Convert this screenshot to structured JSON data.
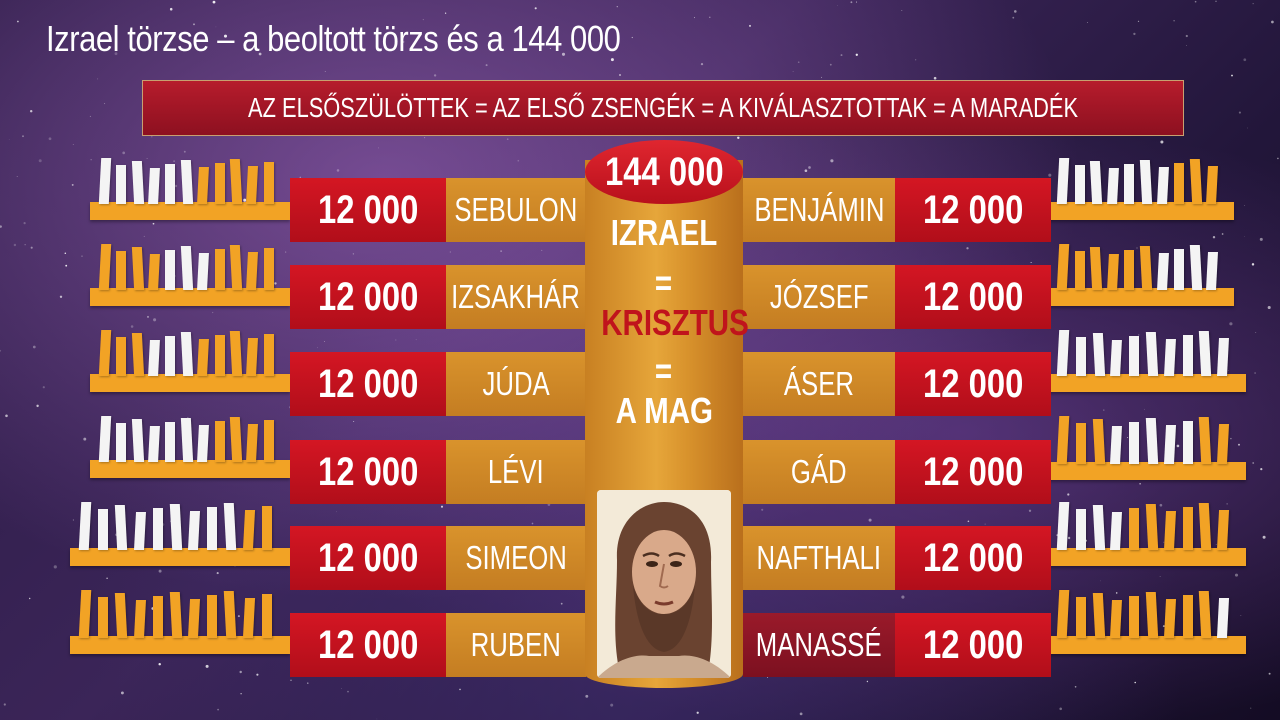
{
  "title": "Izrael törzse – a beoltott törzs és a 144 000",
  "banner": "AZ ELSŐSZÜLÖTTEK = AZ ELSŐ ZSENGÉK = A KIVÁLASZTOTTAK = A MARADÉK",
  "center": {
    "total": "144 000",
    "line1": "IZRAEL",
    "eq1": "=",
    "line2": "KRISZTUS",
    "eq2": "=",
    "line3": "A MAG"
  },
  "left_tribes": [
    {
      "name": "SEBULON",
      "count": "12 000"
    },
    {
      "name": "IZSAKHÁR",
      "count": "12 000"
    },
    {
      "name": "JÚDA",
      "count": "12 000"
    },
    {
      "name": "LÉVI",
      "count": "12 000"
    },
    {
      "name": "SIMEON",
      "count": "12 000"
    },
    {
      "name": "RUBEN",
      "count": "12 000"
    }
  ],
  "right_tribes": [
    {
      "name": "BENJÁMIN",
      "count": "12 000"
    },
    {
      "name": "JÓZSEF",
      "count": "12 000"
    },
    {
      "name": "ÁSER",
      "count": "12 000"
    },
    {
      "name": "GÁD",
      "count": "12 000"
    },
    {
      "name": "NAFTHALI",
      "count": "12 000"
    },
    {
      "name": "MANASSÉ",
      "count": "12 000"
    }
  ],
  "colors": {
    "red": "#d41623",
    "gold": "#d9932c",
    "orange_peg": "#f2a325",
    "white_peg": "#f4f4f4",
    "dark_red": "#8d1020",
    "white_text": "#ffffff",
    "crimson_text": "#c0141c"
  },
  "icons": [
    "jesus-portrait-image"
  ]
}
